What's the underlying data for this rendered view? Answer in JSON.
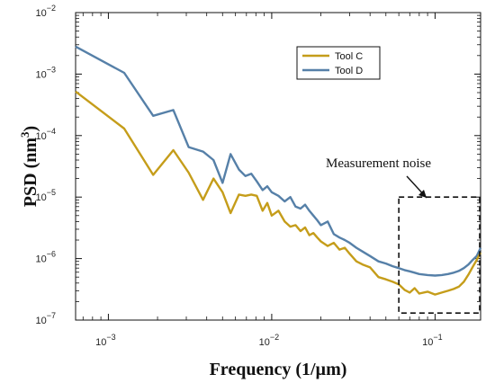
{
  "chart_data": {
    "type": "line",
    "title": "",
    "xlabel": "Frequency (1/µm)",
    "ylabel_main": "PSD (nm",
    "ylabel_sup": "3",
    "ylabel_close": ")",
    "xscale": "log",
    "yscale": "log",
    "xlim": [
      0.00063,
      0.19
    ],
    "ylim": [
      1e-07,
      0.01
    ],
    "x_ticks": [
      {
        "value": 0.001,
        "base": "10",
        "exp": "−3"
      },
      {
        "value": 0.01,
        "base": "10",
        "exp": "−2"
      },
      {
        "value": 0.1,
        "base": "10",
        "exp": "−1"
      }
    ],
    "y_ticks": [
      {
        "value": 1e-07,
        "base": "10",
        "exp": "−7"
      },
      {
        "value": 1e-06,
        "base": "10",
        "exp": "−6"
      },
      {
        "value": 1e-05,
        "base": "10",
        "exp": "−5"
      },
      {
        "value": 0.0001,
        "base": "10",
        "exp": "−4"
      },
      {
        "value": 0.001,
        "base": "10",
        "exp": "−3"
      },
      {
        "value": 0.01,
        "base": "10",
        "exp": "−2"
      }
    ],
    "grid": false,
    "legend": "top-right",
    "series": [
      {
        "name": "Tool C",
        "color": "#c59d1a",
        "x": [
          0.00063,
          0.00125,
          0.00188,
          0.0025,
          0.0031,
          0.0038,
          0.0044,
          0.005,
          0.0056,
          0.0063,
          0.0069,
          0.0075,
          0.0081,
          0.0088,
          0.0094,
          0.01,
          0.011,
          0.012,
          0.013,
          0.014,
          0.015,
          0.016,
          0.017,
          0.018,
          0.019,
          0.02,
          0.022,
          0.024,
          0.026,
          0.028,
          0.03,
          0.033,
          0.036,
          0.04,
          0.045,
          0.05,
          0.055,
          0.06,
          0.065,
          0.07,
          0.075,
          0.08,
          0.09,
          0.1,
          0.11,
          0.12,
          0.13,
          0.14,
          0.15,
          0.16,
          0.17,
          0.18,
          0.19
        ],
        "values": [
          0.00052,
          0.00013,
          2.3e-05,
          5.8e-05,
          2.5e-05,
          9e-06,
          2e-05,
          1.2e-05,
          5.5e-06,
          1.1e-05,
          1.05e-05,
          1.1e-05,
          1.05e-05,
          6e-06,
          8e-06,
          5e-06,
          6e-06,
          4e-06,
          3.3e-06,
          3.5e-06,
          2.8e-06,
          3.2e-06,
          2.4e-06,
          2.6e-06,
          2.2e-06,
          1.9e-06,
          1.6e-06,
          1.8e-06,
          1.4e-06,
          1.5e-06,
          1.2e-06,
          9e-07,
          8e-07,
          7.2e-07,
          5e-07,
          4.6e-07,
          4.2e-07,
          3.8e-07,
          3.1e-07,
          2.8e-07,
          3.3e-07,
          2.7e-07,
          2.9e-07,
          2.6e-07,
          2.8e-07,
          3e-07,
          3.2e-07,
          3.5e-07,
          4.2e-07,
          5.5e-07,
          7.3e-07,
          9.5e-07,
          1.25e-06
        ]
      },
      {
        "name": "Tool D",
        "color": "#5680a8",
        "x": [
          0.00063,
          0.00125,
          0.00188,
          0.0025,
          0.0031,
          0.0038,
          0.0044,
          0.005,
          0.0056,
          0.0063,
          0.0069,
          0.0075,
          0.0081,
          0.0088,
          0.0094,
          0.01,
          0.011,
          0.012,
          0.013,
          0.014,
          0.015,
          0.016,
          0.017,
          0.018,
          0.019,
          0.02,
          0.022,
          0.024,
          0.026,
          0.028,
          0.03,
          0.033,
          0.036,
          0.04,
          0.045,
          0.05,
          0.055,
          0.06,
          0.065,
          0.07,
          0.075,
          0.08,
          0.09,
          0.1,
          0.11,
          0.12,
          0.13,
          0.14,
          0.15,
          0.16,
          0.17,
          0.18,
          0.19
        ],
        "values": [
          0.0028,
          0.00105,
          0.00021,
          0.00026,
          6.5e-05,
          5.5e-05,
          4e-05,
          1.7e-05,
          5e-05,
          2.8e-05,
          2.2e-05,
          2.4e-05,
          1.8e-05,
          1.3e-05,
          1.5e-05,
          1.2e-05,
          1.05e-05,
          8.5e-06,
          1e-05,
          7e-06,
          6.5e-06,
          7.5e-06,
          6e-06,
          5e-06,
          4.2e-06,
          3.5e-06,
          4e-06,
          2.5e-06,
          2.2e-06,
          2e-06,
          1.8e-06,
          1.5e-06,
          1.3e-06,
          1.1e-06,
          9e-07,
          8.3e-07,
          7.5e-07,
          7e-07,
          6.5e-07,
          6.2e-07,
          5.9e-07,
          5.6e-07,
          5.4e-07,
          5.3e-07,
          5.4e-07,
          5.6e-07,
          5.9e-07,
          6.3e-07,
          7e-07,
          8e-07,
          9.5e-07,
          1.1e-06,
          1.5e-06
        ]
      }
    ],
    "annotations": [
      {
        "text": "Measurement noise",
        "x": 0.05,
        "y": 1.6e-05
      },
      {
        "box_x": [
          0.06,
          0.19
        ],
        "box_y": [
          1.3e-07,
          1e-05
        ]
      }
    ]
  }
}
